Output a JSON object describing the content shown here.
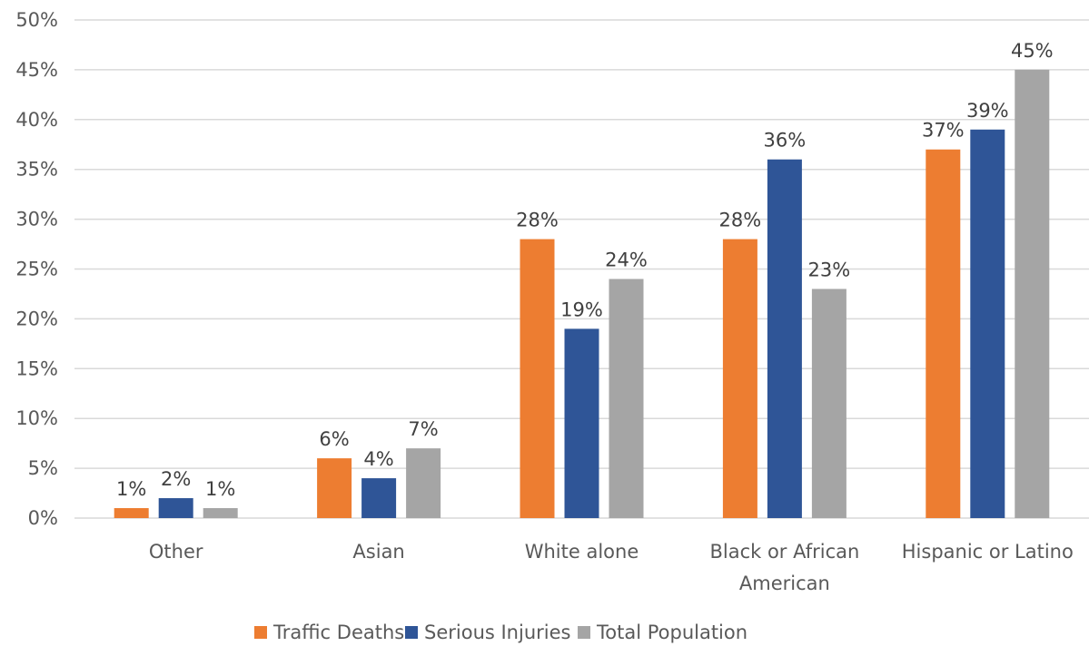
{
  "chart_data": {
    "type": "bar",
    "categories": [
      [
        "Other"
      ],
      [
        "Asian"
      ],
      [
        "White alone"
      ],
      [
        "Black or African",
        "American"
      ],
      [
        "Hispanic or Latino"
      ]
    ],
    "series": [
      {
        "name": "Traffic Deaths",
        "color": "#ed7d31",
        "values": [
          1,
          6,
          28,
          28,
          37
        ],
        "labels": [
          "1%",
          "6%",
          "28%",
          "28%",
          "37%"
        ]
      },
      {
        "name": "Serious Injuries",
        "color": "#2f5597",
        "values": [
          2,
          4,
          19,
          36,
          39
        ],
        "labels": [
          "2%",
          "4%",
          "19%",
          "36%",
          "39%"
        ]
      },
      {
        "name": "Total Population",
        "color": "#a5a5a5",
        "values": [
          1,
          7,
          24,
          23,
          45
        ],
        "labels": [
          "1%",
          "7%",
          "24%",
          "23%",
          "45%"
        ]
      }
    ],
    "ylim": [
      0,
      50
    ],
    "yticks": [
      0,
      5,
      10,
      15,
      20,
      25,
      30,
      35,
      40,
      45,
      50
    ],
    "ytick_labels": [
      "0%",
      "5%",
      "10%",
      "15%",
      "20%",
      "25%",
      "30%",
      "35%",
      "40%",
      "45%",
      "50%"
    ],
    "grid": true,
    "legend_position": "bottom-center",
    "title": "",
    "xlabel": "",
    "ylabel": ""
  }
}
